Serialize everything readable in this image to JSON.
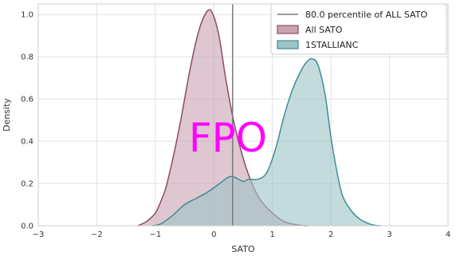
{
  "chart_data": {
    "type": "area",
    "xlabel": "SATO",
    "ylabel": "Density",
    "xlim": [
      -3,
      4
    ],
    "ylim": [
      0,
      1.05
    ],
    "xticks": [
      -3,
      -2,
      -1,
      0,
      1,
      2,
      3,
      4
    ],
    "yticks": [
      0.0,
      0.2,
      0.4,
      0.6,
      0.8,
      1.0
    ],
    "xtick_labels": [
      "−3",
      "−2",
      "−1",
      "0",
      "1",
      "2",
      "3",
      "4"
    ],
    "ytick_labels": [
      "0.0",
      "0.2",
      "0.4",
      "0.6",
      "0.8",
      "1.0"
    ],
    "grid": true,
    "legend_position": "top-right",
    "vline": {
      "x": 0.32,
      "label": "80.0 percentile of ALL SATO",
      "color": "#7a7a7a"
    },
    "series": [
      {
        "name": "All SATO",
        "color": "#8c4a65",
        "fill": "#c9a2b2",
        "points": [
          [
            -1.3,
            0.0
          ],
          [
            -1.15,
            0.02
          ],
          [
            -1.0,
            0.06
          ],
          [
            -0.9,
            0.12
          ],
          [
            -0.8,
            0.2
          ],
          [
            -0.6,
            0.45
          ],
          [
            -0.4,
            0.75
          ],
          [
            -0.25,
            0.93
          ],
          [
            -0.1,
            1.02
          ],
          [
            0.0,
            0.99
          ],
          [
            0.1,
            0.88
          ],
          [
            0.2,
            0.7
          ],
          [
            0.35,
            0.48
          ],
          [
            0.5,
            0.32
          ],
          [
            0.65,
            0.2
          ],
          [
            0.8,
            0.12
          ],
          [
            1.0,
            0.06
          ],
          [
            1.2,
            0.02
          ],
          [
            1.4,
            0.005
          ],
          [
            1.6,
            0.0
          ]
        ]
      },
      {
        "name": "1STALLIANC",
        "color": "#3f8c91",
        "fill": "#9cc3c6",
        "points": [
          [
            -1.05,
            0.0
          ],
          [
            -0.9,
            0.01
          ],
          [
            -0.7,
            0.05
          ],
          [
            -0.5,
            0.1
          ],
          [
            -0.3,
            0.13
          ],
          [
            -0.1,
            0.16
          ],
          [
            0.1,
            0.2
          ],
          [
            0.25,
            0.23
          ],
          [
            0.35,
            0.23
          ],
          [
            0.5,
            0.21
          ],
          [
            0.6,
            0.22
          ],
          [
            0.75,
            0.22
          ],
          [
            0.9,
            0.25
          ],
          [
            1.05,
            0.36
          ],
          [
            1.2,
            0.52
          ],
          [
            1.35,
            0.65
          ],
          [
            1.5,
            0.74
          ],
          [
            1.6,
            0.78
          ],
          [
            1.68,
            0.79
          ],
          [
            1.78,
            0.76
          ],
          [
            1.9,
            0.62
          ],
          [
            2.0,
            0.42
          ],
          [
            2.1,
            0.26
          ],
          [
            2.2,
            0.14
          ],
          [
            2.35,
            0.07
          ],
          [
            2.5,
            0.03
          ],
          [
            2.7,
            0.005
          ],
          [
            2.85,
            0.0
          ]
        ]
      }
    ]
  },
  "overlay_stamp": "FPO"
}
